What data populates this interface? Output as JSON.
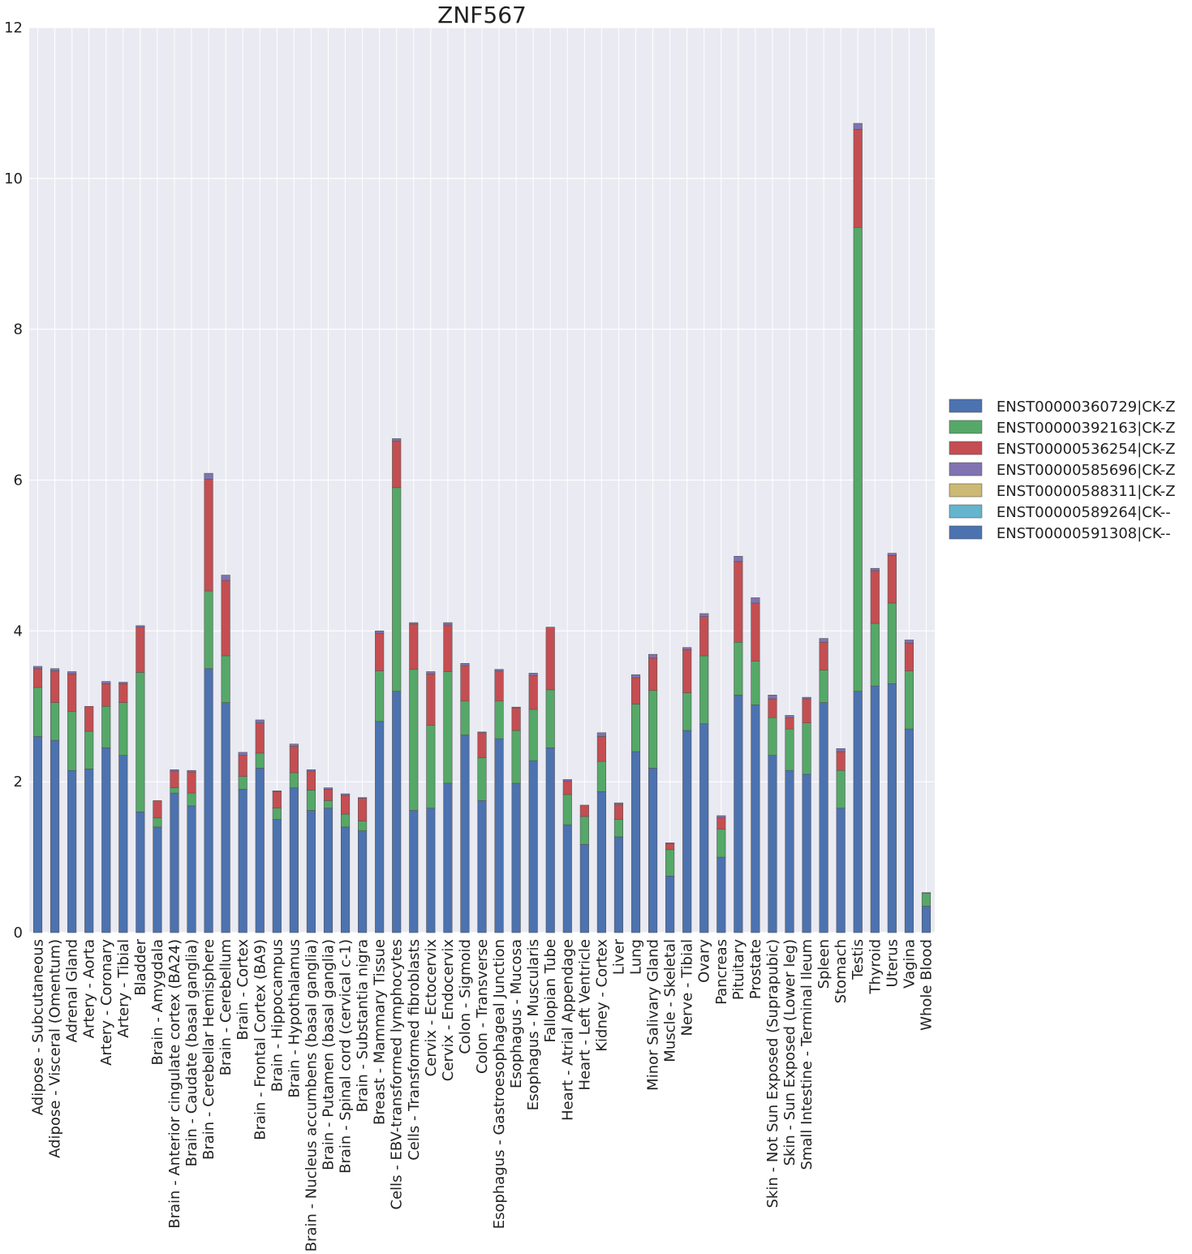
{
  "chart_data": {
    "type": "bar",
    "stacked": true,
    "title": "ZNF567",
    "xlabel": "",
    "ylabel": "",
    "ylim": [
      0,
      12
    ],
    "yticks": [
      "0",
      "2",
      "4",
      "6",
      "8",
      "10",
      "12"
    ],
    "grid": true,
    "legend_position": "right",
    "categories": [
      "Adipose - Subcutaneous",
      "Adipose - Visceral (Omentum)",
      "Adrenal Gland",
      "Artery - Aorta",
      "Artery - Coronary",
      "Artery - Tibial",
      "Bladder",
      "Brain - Amygdala",
      "Brain - Anterior cingulate cortex (BA24)",
      "Brain - Caudate (basal ganglia)",
      "Brain - Cerebellar Hemisphere",
      "Brain - Cerebellum",
      "Brain - Cortex",
      "Brain - Frontal Cortex (BA9)",
      "Brain - Hippocampus",
      "Brain - Hypothalamus",
      "Brain - Nucleus accumbens (basal ganglia)",
      "Brain - Putamen (basal ganglia)",
      "Brain - Spinal cord (cervical c-1)",
      "Brain - Substantia nigra",
      "Breast - Mammary Tissue",
      "Cells - EBV-transformed lymphocytes",
      "Cells - Transformed fibroblasts",
      "Cervix - Ectocervix",
      "Cervix - Endocervix",
      "Colon - Sigmoid",
      "Colon - Transverse",
      "Esophagus - Gastroesophageal Junction",
      "Esophagus - Mucosa",
      "Esophagus - Muscularis",
      "Fallopian Tube",
      "Heart - Atrial Appendage",
      "Heart - Left Ventricle",
      "Kidney - Cortex",
      "Liver",
      "Lung",
      "Minor Salivary Gland",
      "Muscle - Skeletal",
      "Nerve - Tibial",
      "Ovary",
      "Pancreas",
      "Pituitary",
      "Prostate",
      "Skin - Not Sun Exposed (Suprapubic)",
      "Skin - Sun Exposed (Lower leg)",
      "Small Intestine - Terminal Ileum",
      "Spleen",
      "Stomach",
      "Testis",
      "Thyroid",
      "Uterus",
      "Vagina",
      "Whole Blood"
    ],
    "series": [
      {
        "name": "ENST00000360729|CK-Z",
        "color": "#4c72b0",
        "values": [
          2.6,
          2.55,
          2.15,
          2.17,
          2.45,
          2.35,
          1.6,
          1.4,
          1.85,
          1.68,
          3.5,
          3.05,
          1.9,
          2.18,
          1.5,
          1.92,
          1.62,
          1.65,
          1.4,
          1.35,
          2.8,
          3.2,
          1.62,
          1.65,
          1.98,
          2.62,
          1.75,
          2.57,
          1.98,
          2.28,
          2.45,
          1.43,
          1.17,
          1.87,
          1.27,
          2.4,
          2.18,
          0.75,
          2.68,
          2.77,
          1.0,
          3.15,
          3.02,
          2.35,
          2.15,
          2.1,
          3.05,
          1.65,
          3.2,
          3.27,
          3.3,
          2.7,
          0.35
        ]
      },
      {
        "name": "ENST00000392163|CK-Z",
        "color": "#55a868",
        "values": [
          0.65,
          0.5,
          0.78,
          0.5,
          0.55,
          0.7,
          1.85,
          0.12,
          0.07,
          0.17,
          1.03,
          0.62,
          0.17,
          0.2,
          0.15,
          0.2,
          0.27,
          0.1,
          0.17,
          0.13,
          0.67,
          2.7,
          1.87,
          1.1,
          1.48,
          0.45,
          0.57,
          0.5,
          0.7,
          0.68,
          0.77,
          0.4,
          0.37,
          0.4,
          0.23,
          0.63,
          1.03,
          0.35,
          0.5,
          0.9,
          0.37,
          0.7,
          0.58,
          0.5,
          0.55,
          0.68,
          0.43,
          0.5,
          6.15,
          0.83,
          1.07,
          0.77,
          0.17
        ]
      },
      {
        "name": "ENST00000536254|CK-Z",
        "color": "#c44e52",
        "values": [
          0.25,
          0.42,
          0.5,
          0.33,
          0.3,
          0.25,
          0.6,
          0.23,
          0.22,
          0.28,
          1.48,
          1.0,
          0.28,
          0.4,
          0.22,
          0.35,
          0.25,
          0.15,
          0.25,
          0.3,
          0.5,
          0.62,
          0.6,
          0.68,
          0.62,
          0.47,
          0.33,
          0.4,
          0.3,
          0.45,
          0.83,
          0.18,
          0.15,
          0.33,
          0.2,
          0.35,
          0.43,
          0.08,
          0.57,
          0.52,
          0.15,
          1.07,
          0.77,
          0.25,
          0.15,
          0.32,
          0.37,
          0.25,
          1.3,
          0.7,
          0.63,
          0.37,
          0.0
        ]
      },
      {
        "name": "ENST00000585696|CK-Z",
        "color": "#8172b2",
        "values": [
          0.03,
          0.03,
          0.03,
          0.0,
          0.03,
          0.02,
          0.02,
          0.0,
          0.02,
          0.02,
          0.08,
          0.07,
          0.04,
          0.04,
          0.01,
          0.03,
          0.02,
          0.02,
          0.02,
          0.01,
          0.03,
          0.03,
          0.02,
          0.03,
          0.03,
          0.03,
          0.01,
          0.02,
          0.01,
          0.03,
          0.0,
          0.02,
          0.0,
          0.05,
          0.02,
          0.04,
          0.05,
          0.01,
          0.03,
          0.04,
          0.03,
          0.07,
          0.07,
          0.05,
          0.03,
          0.02,
          0.05,
          0.04,
          0.08,
          0.03,
          0.03,
          0.04,
          0.01
        ]
      },
      {
        "name": "ENST00000588311|CK-Z",
        "color": "#ccb974",
        "values": [
          0,
          0,
          0,
          0,
          0,
          0,
          0,
          0,
          0,
          0,
          0,
          0,
          0,
          0,
          0,
          0,
          0,
          0,
          0,
          0,
          0,
          0,
          0,
          0,
          0,
          0,
          0,
          0,
          0,
          0,
          0,
          0,
          0,
          0,
          0,
          0,
          0,
          0,
          0,
          0,
          0,
          0,
          0,
          0,
          0,
          0,
          0,
          0,
          0,
          0,
          0,
          0,
          0
        ]
      },
      {
        "name": "ENST00000589264|CK--",
        "color": "#64b5cd",
        "values": [
          0,
          0,
          0,
          0,
          0,
          0,
          0,
          0,
          0,
          0,
          0,
          0,
          0,
          0,
          0,
          0,
          0,
          0,
          0,
          0,
          0,
          0,
          0,
          0,
          0,
          0,
          0,
          0,
          0,
          0,
          0,
          0,
          0,
          0,
          0,
          0,
          0,
          0,
          0,
          0,
          0,
          0,
          0,
          0,
          0,
          0,
          0,
          0,
          0,
          0,
          0,
          0,
          0
        ]
      },
      {
        "name": "ENST00000591308|CK--",
        "color": "#4c72b0",
        "values": [
          0,
          0,
          0,
          0,
          0,
          0,
          0,
          0,
          0,
          0,
          0,
          0,
          0,
          0,
          0,
          0,
          0,
          0,
          0,
          0,
          0,
          0,
          0,
          0,
          0,
          0,
          0,
          0,
          0,
          0,
          0,
          0,
          0,
          0,
          0,
          0,
          0,
          0,
          0,
          0,
          0,
          0,
          0,
          0,
          0,
          0,
          0,
          0,
          0,
          0,
          0,
          0,
          0
        ]
      }
    ]
  }
}
